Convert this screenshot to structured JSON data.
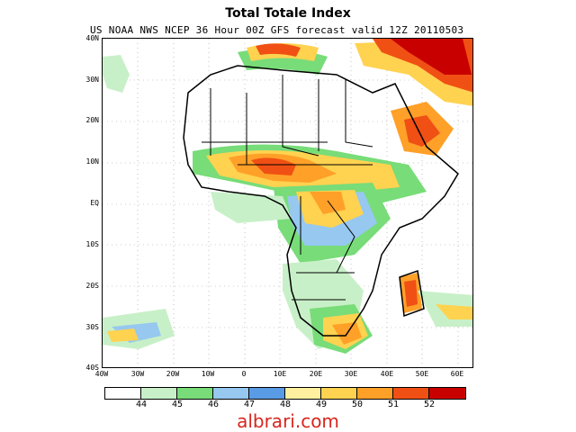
{
  "title": "Total Totale Index",
  "subtitle": "US NOAA NWS NCEP 36 Hour 00Z GFS forecast valid 12Z 20110503",
  "axes": {
    "latitude_labels": [
      "40N",
      "30N",
      "20N",
      "10N",
      "EQ",
      "10S",
      "20S",
      "30S",
      "40S"
    ],
    "longitude_labels": [
      "40W",
      "30W",
      "20W",
      "10W",
      "0",
      "10E",
      "20E",
      "30E",
      "40E",
      "50E",
      "60E"
    ]
  },
  "legend": {
    "colors": [
      "#ffffff",
      "#c8f0c8",
      "#78dc78",
      "#96c8f0",
      "#5a9be6",
      "#fff0a0",
      "#ffd250",
      "#ffa028",
      "#f05014",
      "#c80000"
    ],
    "labels": [
      "44",
      "45",
      "46",
      "47",
      "48",
      "49",
      "50",
      "51",
      "52"
    ]
  },
  "watermark": "albrari.com"
}
